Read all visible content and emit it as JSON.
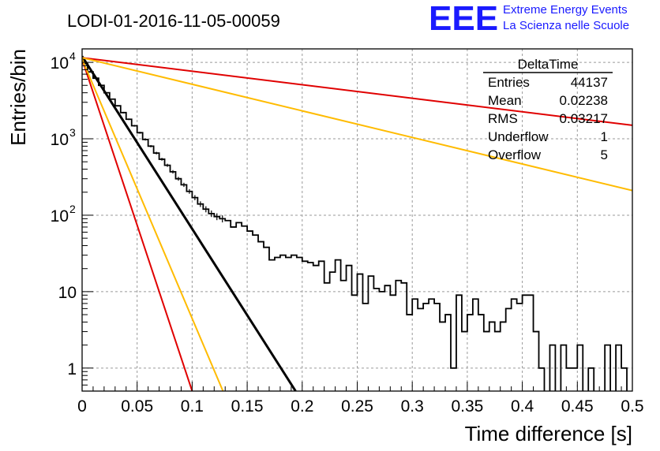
{
  "header": {
    "title": "LODI-01-2016-11-05-00059",
    "logo_text": "EEE",
    "logo_line1": "Extreme Energy Events",
    "logo_line2": "La Scienza nelle Scuole",
    "logo_color": "#1a1aff"
  },
  "stats_box": {
    "name": "DeltaTime",
    "rows": [
      {
        "label": "Entries",
        "value": "44137"
      },
      {
        "label": "Mean",
        "value": "0.02238"
      },
      {
        "label": "RMS",
        "value": "0.03217"
      },
      {
        "label": "Underflow",
        "value": "1"
      },
      {
        "label": "Overflow",
        "value": "5"
      }
    ]
  },
  "colors": {
    "histogram": "#000000",
    "fit": "#000000",
    "red": "#e00000",
    "orange": "#ffbb00",
    "grid": "#9a9a9a"
  },
  "chart_data": {
    "type": "line",
    "title": "LODI-01-2016-11-05-00059",
    "xlabel": "Time difference [s]",
    "ylabel": "Entries/bin",
    "xlim": [
      0,
      0.5
    ],
    "ylim": [
      0.5,
      15000
    ],
    "y_scale": "log",
    "grid": true,
    "x_ticks": [
      "0",
      "0.05",
      "0.1",
      "0.15",
      "0.2",
      "0.25",
      "0.3",
      "0.35",
      "0.4",
      "0.45",
      "0.5"
    ],
    "y_ticks": [
      {
        "value": 1,
        "label": "1",
        "sup": ""
      },
      {
        "value": 10,
        "label": "10",
        "sup": ""
      },
      {
        "value": 100,
        "label": "10",
        "sup": "2"
      },
      {
        "value": 1000,
        "label": "10",
        "sup": "3"
      },
      {
        "value": 10000,
        "label": "10",
        "sup": "4"
      }
    ],
    "histogram": {
      "bin_width": 0.005,
      "counts": [
        9600,
        7500,
        6200,
        5000,
        4000,
        3300,
        2700,
        2200,
        1800,
        1480,
        1200,
        980,
        800,
        650,
        540,
        450,
        370,
        300,
        250,
        205,
        170,
        140,
        120,
        105,
        96,
        90,
        85,
        70,
        80,
        72,
        62,
        55,
        45,
        38,
        26,
        28,
        30,
        28,
        30,
        28,
        25,
        24,
        22,
        25,
        13,
        18,
        26,
        14,
        22,
        9,
        17,
        7,
        16,
        11,
        10,
        12,
        9,
        14,
        13,
        5,
        8,
        6,
        7,
        8,
        7,
        4,
        5,
        1,
        9,
        3,
        5,
        8,
        5,
        3,
        4,
        3,
        4,
        6,
        8,
        7,
        9,
        9,
        3,
        1,
        0,
        2,
        0,
        2,
        1,
        1,
        2,
        0,
        1,
        0,
        0,
        2,
        0,
        2,
        1,
        0
      ]
    },
    "series": [
      {
        "kind": "fit",
        "color": "#000000",
        "points": [
          [
            0,
            12000
          ],
          [
            0.194,
            0.5
          ]
        ]
      },
      {
        "kind": "red",
        "color": "#e00000",
        "points": [
          [
            0,
            11000
          ],
          [
            0.1,
            0.5
          ]
        ]
      },
      {
        "kind": "orange",
        "color": "#ffbb00",
        "points": [
          [
            0,
            11000
          ],
          [
            0.128,
            0.5
          ]
        ]
      },
      {
        "kind": "red",
        "color": "#e00000",
        "points": [
          [
            0,
            11500
          ],
          [
            0.5,
            1500
          ]
        ]
      },
      {
        "kind": "orange",
        "color": "#ffbb00",
        "points": [
          [
            0,
            11500
          ],
          [
            0.5,
            210
          ]
        ]
      }
    ]
  }
}
